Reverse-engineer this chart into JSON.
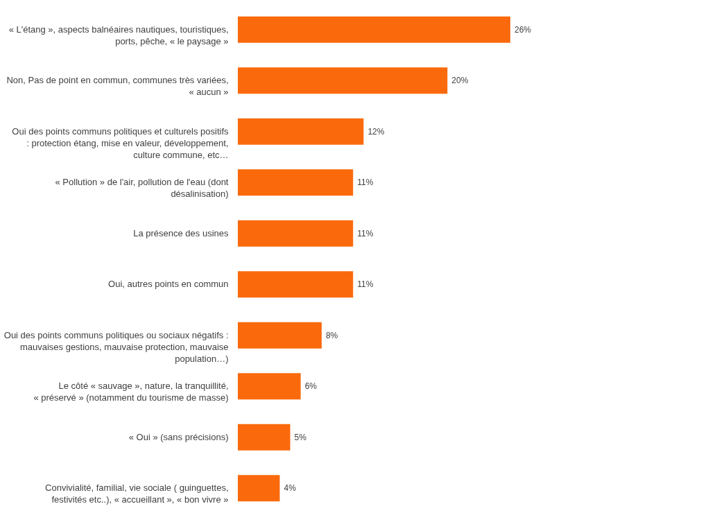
{
  "chart_data": {
    "type": "bar",
    "orientation": "horizontal",
    "categories": [
      "« L'étang », aspects balnéaires nautiques, touristiques, ports, pêche, « le paysage »",
      "Non, Pas de point en commun, communes très variées, « aucun »",
      "Oui des points communs politiques et culturels positifs : protection étang, mise en valeur, développement, culture commune, etc…",
      "« Pollution » de l'air, pollution de l'eau (dont désalinisation)",
      "La présence des usines",
      "Oui, autres points en commun",
      "Oui des points communs politiques ou sociaux négatifs : mauvaises gestions, mauvaise protection, mauvaise population…)",
      "Le côté « sauvage », nature, la tranquillité, « préservé » (notamment du tourisme de masse)",
      "« Oui » (sans précisions)",
      "Convivialité, familial, vie sociale ( guinguettes, festivités etc..), « accueillant », « bon vivre »"
    ],
    "values": [
      26,
      20,
      12,
      11,
      11,
      11,
      8,
      6,
      5,
      4
    ],
    "value_labels": [
      "26%",
      "20%",
      "12%",
      "11%",
      "11%",
      "11%",
      "8%",
      "6%",
      "5%",
      "4%"
    ],
    "color": "#fa6a0c",
    "grid": false
  }
}
